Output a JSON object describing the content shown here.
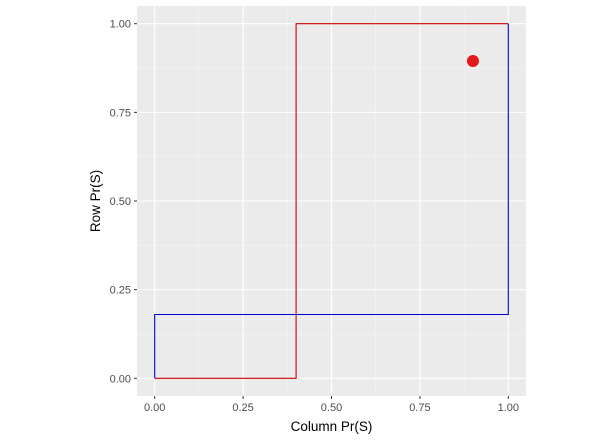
{
  "chart_data": {
    "type": "line",
    "title": "",
    "xlabel": "Column Pr(S)",
    "ylabel": "Row Pr(S)",
    "xlim": [
      -0.05,
      1.05
    ],
    "ylim": [
      -0.05,
      1.05
    ],
    "x_ticks": [
      0.0,
      0.25,
      0.5,
      0.75,
      1.0
    ],
    "x_tick_labels": [
      "0.00",
      "0.25",
      "0.50",
      "0.75",
      "1.00"
    ],
    "y_ticks": [
      0.0,
      0.25,
      0.5,
      0.75,
      1.0
    ],
    "y_tick_labels": [
      "0.00",
      "0.25",
      "0.50",
      "0.75",
      "1.00"
    ],
    "grid": true,
    "legend": "none",
    "colors": {
      "panel_background": "#ebebeb",
      "grid_major": "#ffffff",
      "grid_minor": "#f5f5f5",
      "tick_label": "#4d4d4d"
    },
    "series": [
      {
        "color": "#cc0000",
        "points": [
          {
            "x": 0.0,
            "y": 0.0
          },
          {
            "x": 0.4,
            "y": 0.0
          },
          {
            "x": 0.4,
            "y": 1.0
          },
          {
            "x": 1.0,
            "y": 1.0
          }
        ]
      },
      {
        "color": "#0000cc",
        "points": [
          {
            "x": 0.0,
            "y": 0.0
          },
          {
            "x": 0.0,
            "y": 0.18
          },
          {
            "x": 1.0,
            "y": 0.18
          },
          {
            "x": 1.0,
            "y": 1.0
          }
        ]
      }
    ],
    "points": [
      {
        "x": 0.9,
        "y": 0.895,
        "color": "#e41a1c"
      }
    ]
  }
}
